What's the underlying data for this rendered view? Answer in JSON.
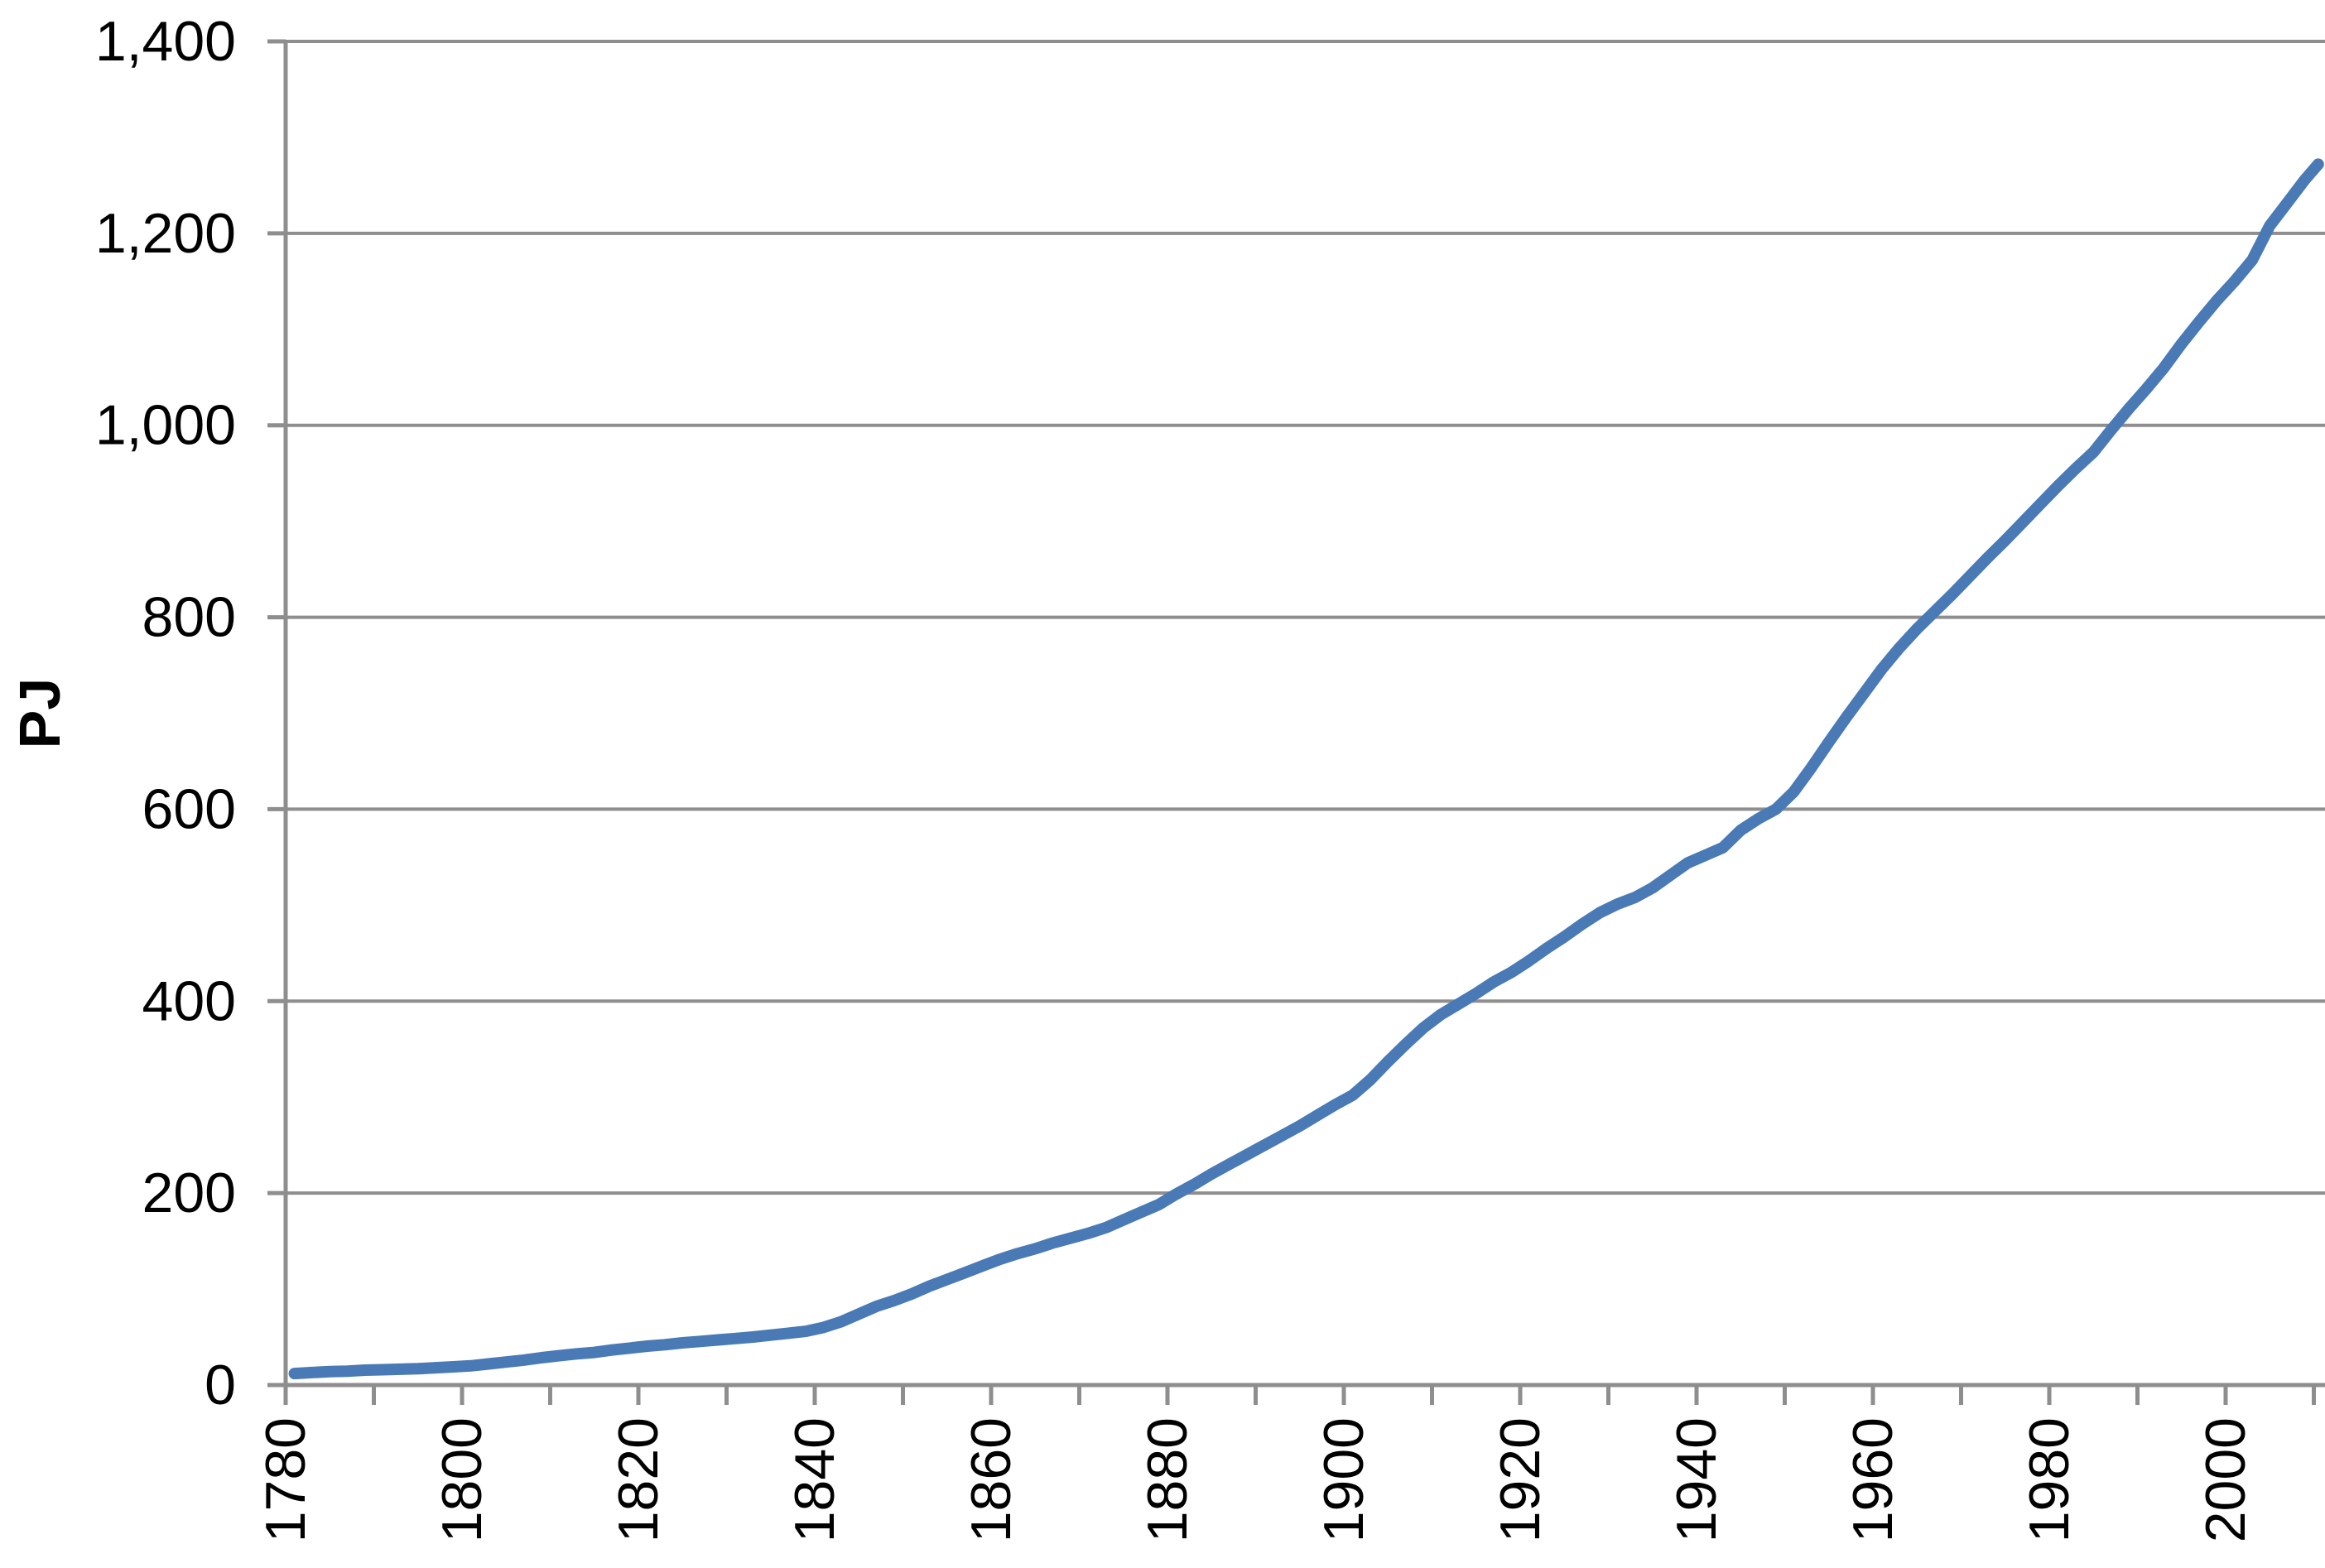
{
  "chart_data": {
    "type": "line",
    "title": "",
    "xlabel": "",
    "ylabel": "PJ",
    "ylim": [
      0,
      1400
    ],
    "xlim": [
      1780,
      2011
    ],
    "grid": "horizontal",
    "legend": "none",
    "colors": {
      "series": "#4A7AB5",
      "axis": "#8E8E8E",
      "text": "#000000",
      "background": "#FFFFFF"
    },
    "y_axis": {
      "tick_values": [
        0,
        200,
        400,
        600,
        800,
        1000,
        1200,
        1400
      ],
      "tick_labels": [
        "0",
        "200",
        "400",
        "600",
        "800",
        "1,000",
        "1,200",
        "1,400"
      ]
    },
    "x_axis": {
      "minor_tick_years": [
        1780,
        1790,
        1800,
        1810,
        1820,
        1830,
        1840,
        1850,
        1860,
        1870,
        1880,
        1890,
        1900,
        1910,
        1920,
        1930,
        1940,
        1950,
        1960,
        1970,
        1980,
        1990,
        2000,
        2010
      ],
      "labeled_years": [
        1780,
        1800,
        1820,
        1840,
        1860,
        1880,
        1900,
        1920,
        1940,
        1960,
        1980,
        2000
      ],
      "tick_labels": [
        "1780",
        "1800",
        "1820",
        "1840",
        "1860",
        "1880",
        "1900",
        "1920",
        "1940",
        "1960",
        "1980",
        "2000"
      ]
    },
    "series": [
      {
        "x": [
          1781,
          1783,
          1785,
          1787,
          1789,
          1791,
          1793,
          1795,
          1797,
          1799,
          1801,
          1803,
          1805,
          1807,
          1809,
          1811,
          1813,
          1815,
          1817,
          1819,
          1821,
          1823,
          1825,
          1827,
          1829,
          1831,
          1833,
          1835,
          1837,
          1839,
          1841,
          1843,
          1845,
          1847,
          1849,
          1851,
          1853,
          1855,
          1857,
          1859,
          1861,
          1863,
          1865,
          1867,
          1869,
          1871,
          1873,
          1875,
          1877,
          1879,
          1881,
          1883,
          1885,
          1887,
          1889,
          1891,
          1893,
          1895,
          1897,
          1899,
          1901,
          1903,
          1905,
          1907,
          1909,
          1911,
          1913,
          1915,
          1917,
          1919,
          1921,
          1923,
          1925,
          1927,
          1929,
          1931,
          1933,
          1935,
          1937,
          1939,
          1941,
          1943,
          1945,
          1947,
          1949,
          1951,
          1953,
          1955,
          1957,
          1959,
          1961,
          1963,
          1965,
          1967,
          1969,
          1971,
          1973,
          1975,
          1977,
          1979,
          1981,
          1983,
          1985,
          1987,
          1989,
          1991,
          1993,
          1995,
          1997,
          1999,
          2001,
          2003,
          2005,
          2007,
          2009,
          2010.5
        ],
        "values": [
          12,
          13,
          14,
          14.5,
          15.5,
          16,
          16.5,
          17,
          18,
          19,
          20,
          22,
          24,
          26,
          28.5,
          30.5,
          32.5,
          34,
          36.5,
          38.5,
          40.5,
          42,
          44,
          45.5,
          47,
          48.5,
          50,
          52,
          54,
          56,
          60,
          66,
          74,
          82,
          88,
          95,
          103,
          110,
          117,
          124,
          131,
          137,
          142,
          148,
          153,
          158,
          164,
          172,
          180,
          188,
          199,
          209,
          220,
          230,
          240,
          250,
          260,
          270,
          281,
          292,
          302,
          318,
          337,
          355,
          372,
          386,
          397,
          408,
          420,
          430,
          442,
          455,
          467,
          480,
          492,
          501,
          508,
          518,
          531,
          544,
          552,
          560,
          578,
          590,
          600,
          618,
          643,
          670,
          696,
          721,
          746,
          768,
          788,
          806,
          824,
          843,
          862,
          880,
          899,
          918,
          937,
          955,
          972,
          995,
          1017,
          1038,
          1060,
          1085,
          1108,
          1130,
          1150,
          1172,
          1208,
          1232,
          1256,
          1272
        ]
      }
    ]
  }
}
